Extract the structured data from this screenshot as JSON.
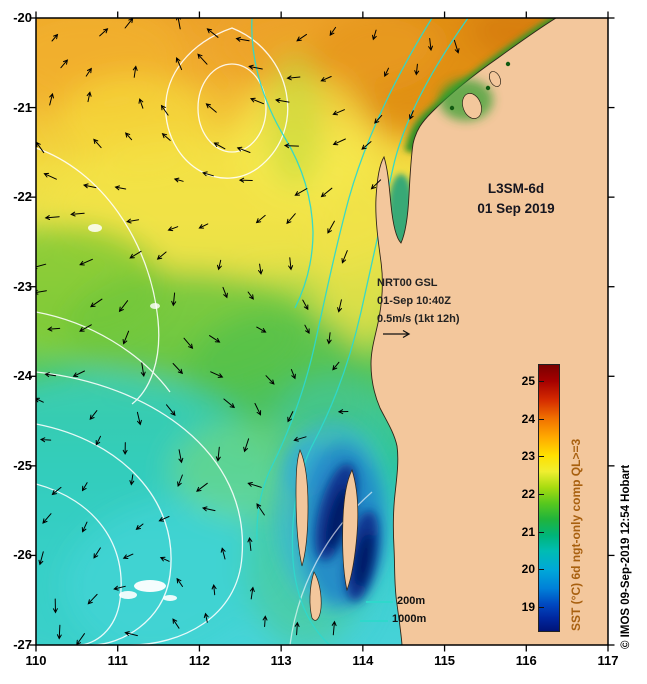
{
  "figure": {
    "product": "L3SM-6d",
    "date": "01 Sep 2019",
    "annotation": {
      "source": "NRT00 GSL",
      "obs_time": "01-Sep 10:40Z",
      "vector_scale": "0.5m/s (1kt 12h)"
    },
    "depth_legend": {
      "shallow": "200m",
      "deep": "1000m"
    },
    "copyright": "© IMOS 09-Sep-2019 12:54 Hobart"
  },
  "axes": {
    "x_ticks": [
      "110",
      "111",
      "112",
      "113",
      "114",
      "115",
      "116",
      "117"
    ],
    "y_ticks": [
      "-20",
      "-21",
      "-22",
      "-23",
      "-24",
      "-25",
      "-26",
      "-27"
    ]
  },
  "colorbar": {
    "label": "SST (°C) 6d ngt-only comp QL>=3",
    "ticks": [
      "25",
      "24",
      "23",
      "22",
      "21",
      "20",
      "19"
    ],
    "label_color": "#a8600f",
    "stops": [
      [
        0,
        "#7a0000"
      ],
      [
        6,
        "#a50000"
      ],
      [
        13,
        "#d42a00"
      ],
      [
        20,
        "#f07000"
      ],
      [
        27,
        "#ffa800"
      ],
      [
        34,
        "#ffe000"
      ],
      [
        40,
        "#f0ee30"
      ],
      [
        46,
        "#a8dc10"
      ],
      [
        52,
        "#58c81e"
      ],
      [
        58,
        "#20b43c"
      ],
      [
        64,
        "#00b478"
      ],
      [
        70,
        "#00bcb4"
      ],
      [
        77,
        "#00a8d8"
      ],
      [
        84,
        "#0080d8"
      ],
      [
        90,
        "#0048c0"
      ],
      [
        95,
        "#0028a0"
      ],
      [
        100,
        "#001478"
      ]
    ]
  },
  "colors": {
    "land": "#f3c79c",
    "ocean_warm": "#eda22b",
    "ocean_cool": "#46d2d8",
    "bay_cold": "#041c66",
    "bathymetry_line": "#2fd8cc",
    "ssh_contour": "#ffffff",
    "current_vectors": "#000000"
  },
  "chart_data": {
    "type": "heatmap",
    "title": "L3SM-6d",
    "subtitle": "01 Sep 2019",
    "x_ticks": [
      110,
      111,
      112,
      113,
      114,
      115,
      116,
      117
    ],
    "y_ticks": [
      -20,
      -21,
      -22,
      -23,
      -24,
      -25,
      -26,
      -27
    ],
    "colorbar_label": "SST (°C) 6d ngt-only comp QL>=3",
    "colorbar_ticks": [
      25,
      24,
      23,
      22,
      21,
      20,
      19
    ],
    "colorbar_range": [
      19,
      25
    ],
    "overlays": [
      "surface current vectors, scale 0.5m/s (1kt 12h)",
      "white sea-surface-height contours",
      "cyan 200m and 1000m isobaths"
    ]
  }
}
